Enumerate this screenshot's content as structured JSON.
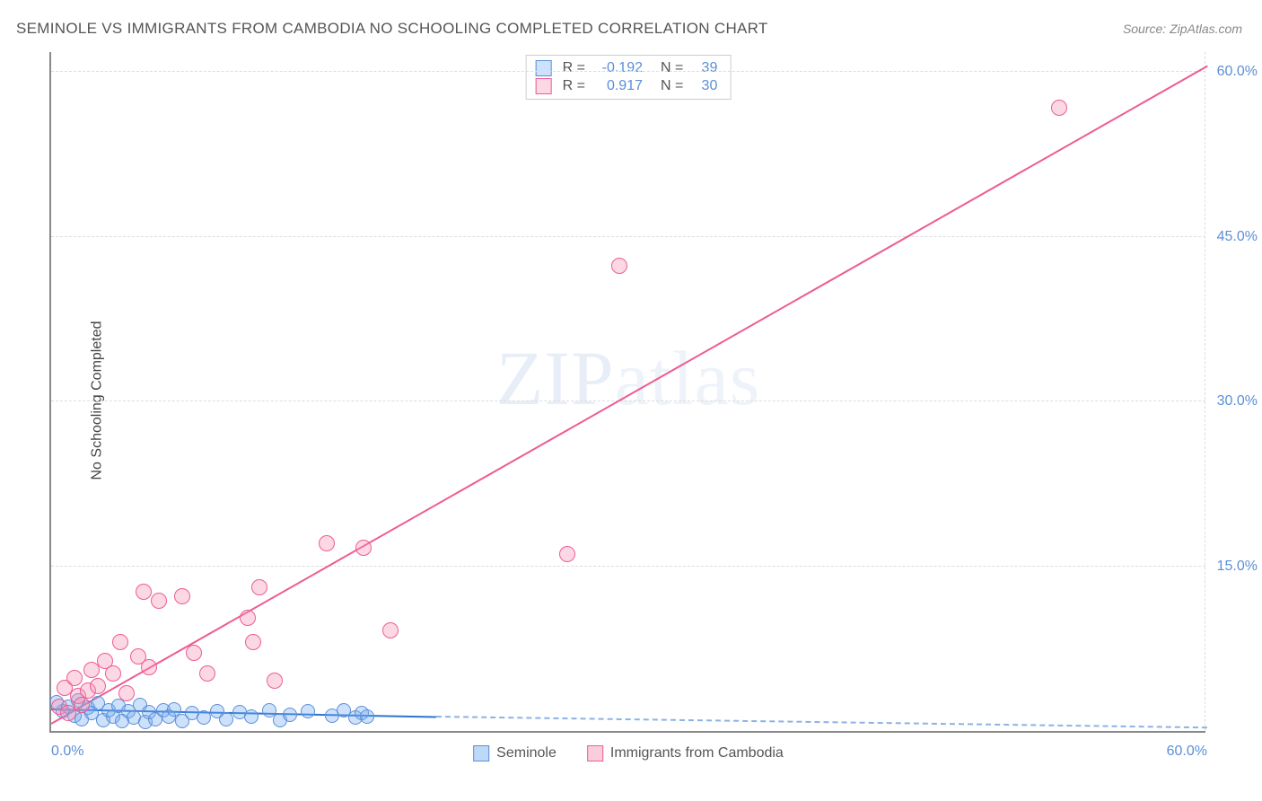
{
  "title": "SEMINOLE VS IMMIGRANTS FROM CAMBODIA NO SCHOOLING COMPLETED CORRELATION CHART",
  "source_label": "Source: ZipAtlas.com",
  "ylabel": "No Schooling Completed",
  "watermark_bold": "ZIP",
  "watermark_thin": "atlas",
  "chart": {
    "type": "scatter",
    "background_color": "#ffffff",
    "grid_color": "#dddddd",
    "axis_color": "#888888",
    "xlim": [
      0,
      60
    ],
    "ylim": [
      0,
      62
    ],
    "xticks": [
      {
        "v": 0,
        "label": "0.0%"
      },
      {
        "v": 60,
        "label": "60.0%"
      }
    ],
    "yticks": [
      {
        "v": 15,
        "label": "15.0%"
      },
      {
        "v": 30,
        "label": "30.0%"
      },
      {
        "v": 45,
        "label": "45.0%"
      },
      {
        "v": 60,
        "label": "60.0%"
      }
    ],
    "series": [
      {
        "name": "Seminole",
        "marker_color": "#6faaf0",
        "marker_fill": "rgba(111,170,240,0.35)",
        "marker_border": "#5b8fd6",
        "marker_radius": 8,
        "trend_color": "#2f74d0",
        "trend_width": 2,
        "trend": {
          "x0": 0,
          "y0": 1.9,
          "x1": 20,
          "y1": 1.2,
          "dash_to_x": 60,
          "dash_to_y": 0.2
        },
        "R": "-0.192",
        "N": "39",
        "points": [
          [
            0.3,
            2.6
          ],
          [
            0.6,
            1.8
          ],
          [
            0.9,
            2.2
          ],
          [
            1.2,
            1.4
          ],
          [
            1.4,
            2.8
          ],
          [
            1.6,
            1.1
          ],
          [
            1.9,
            2.1
          ],
          [
            2.1,
            1.6
          ],
          [
            2.4,
            2.5
          ],
          [
            2.7,
            1.0
          ],
          [
            3.0,
            1.9
          ],
          [
            3.2,
            1.3
          ],
          [
            3.5,
            2.3
          ],
          [
            3.7,
            0.9
          ],
          [
            4.0,
            1.8
          ],
          [
            4.3,
            1.2
          ],
          [
            4.6,
            2.4
          ],
          [
            4.9,
            0.8
          ],
          [
            5.1,
            1.7
          ],
          [
            5.4,
            1.1
          ],
          [
            5.8,
            1.9
          ],
          [
            6.1,
            1.3
          ],
          [
            6.4,
            2.0
          ],
          [
            6.8,
            0.9
          ],
          [
            7.3,
            1.6
          ],
          [
            7.9,
            1.2
          ],
          [
            8.6,
            1.8
          ],
          [
            9.1,
            1.1
          ],
          [
            9.8,
            1.7
          ],
          [
            10.4,
            1.3
          ],
          [
            11.3,
            1.9
          ],
          [
            11.9,
            1.0
          ],
          [
            12.4,
            1.5
          ],
          [
            13.3,
            1.8
          ],
          [
            14.6,
            1.4
          ],
          [
            15.2,
            1.9
          ],
          [
            15.8,
            1.2
          ],
          [
            16.1,
            1.6
          ],
          [
            16.4,
            1.3
          ]
        ]
      },
      {
        "name": "Immigrants from Cambodia",
        "marker_color": "#f590b3",
        "marker_fill": "rgba(245,144,179,0.35)",
        "marker_border": "#ed5c94",
        "marker_radius": 9,
        "trend_color": "#ed5c94",
        "trend_width": 2,
        "trend": {
          "x0": 0,
          "y0": 0.6,
          "x1": 60,
          "y1": 60.5
        },
        "R": "0.917",
        "N": "30",
        "points": [
          [
            0.4,
            2.2
          ],
          [
            0.7,
            3.9
          ],
          [
            0.9,
            1.6
          ],
          [
            1.2,
            4.8
          ],
          [
            1.4,
            3.2
          ],
          [
            1.6,
            2.4
          ],
          [
            1.9,
            3.7
          ],
          [
            2.1,
            5.6
          ],
          [
            2.4,
            4.1
          ],
          [
            2.8,
            6.4
          ],
          [
            3.2,
            5.2
          ],
          [
            3.6,
            8.1
          ],
          [
            3.9,
            3.4
          ],
          [
            4.5,
            6.8
          ],
          [
            4.8,
            12.7
          ],
          [
            5.1,
            5.8
          ],
          [
            5.6,
            11.9
          ],
          [
            6.8,
            12.3
          ],
          [
            7.4,
            7.1
          ],
          [
            8.1,
            5.2
          ],
          [
            10.2,
            10.3
          ],
          [
            10.5,
            8.1
          ],
          [
            10.8,
            13.1
          ],
          [
            11.6,
            4.6
          ],
          [
            14.3,
            17.1
          ],
          [
            16.2,
            16.7
          ],
          [
            17.6,
            9.2
          ],
          [
            26.8,
            16.1
          ],
          [
            29.5,
            42.4
          ],
          [
            52.3,
            56.8
          ]
        ]
      }
    ]
  },
  "bottom_legend": [
    {
      "label": "Seminole",
      "fill": "rgba(111,170,240,0.45)",
      "border": "#5b8fd6"
    },
    {
      "label": "Immigrants from Cambodia",
      "fill": "rgba(245,144,179,0.45)",
      "border": "#ed5c94"
    }
  ]
}
